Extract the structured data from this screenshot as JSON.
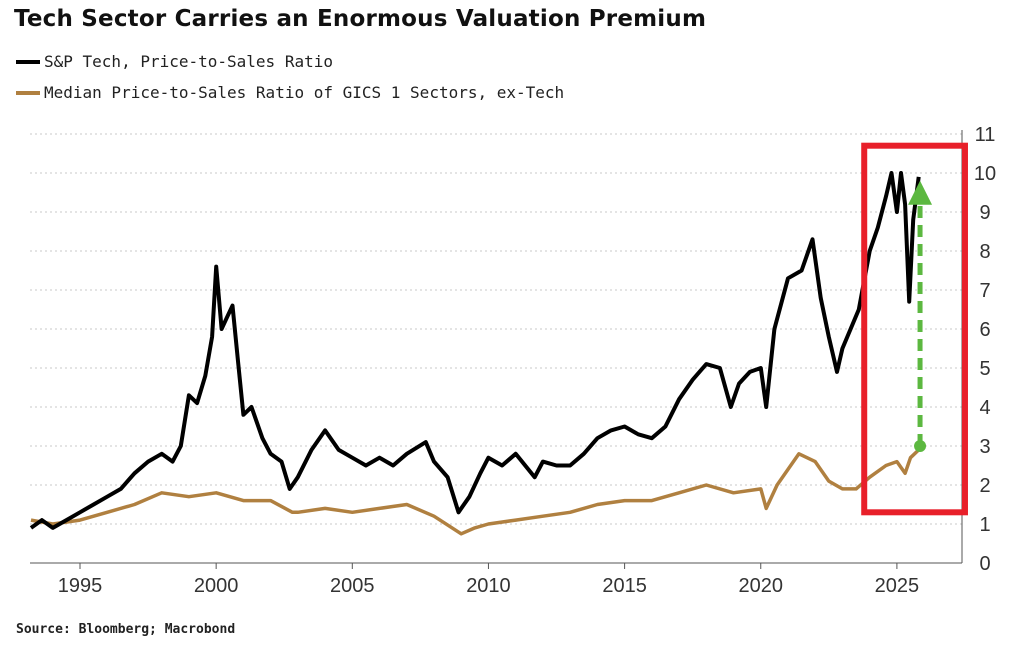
{
  "chart_data": {
    "type": "line",
    "title": "Tech Sector Carries an Enormous Valuation Premium",
    "source": "Source: Bloomberg; Macrobond",
    "xlabel": "",
    "ylabel": "",
    "xlim": [
      1993.2,
      2027.5
    ],
    "ylim": [
      0,
      11
    ],
    "x_ticks": [
      "1995",
      "2000",
      "2005",
      "2010",
      "2015",
      "2020",
      "2025"
    ],
    "y_ticks": [
      "0",
      "1",
      "2",
      "3",
      "4",
      "5",
      "6",
      "7",
      "8",
      "9",
      "10",
      "11"
    ],
    "y_axis_side": "right",
    "grid": "horizontal dotted",
    "legend_placement": "top-left",
    "series": [
      {
        "name": "S&P Tech, Price-to-Sales Ratio",
        "color": "#000000",
        "points": [
          [
            1993.2,
            0.9
          ],
          [
            1993.6,
            1.1
          ],
          [
            1994,
            0.9
          ],
          [
            1994.5,
            1.1
          ],
          [
            1995,
            1.3
          ],
          [
            1995.5,
            1.5
          ],
          [
            1996,
            1.7
          ],
          [
            1996.5,
            1.9
          ],
          [
            1997,
            2.3
          ],
          [
            1997.5,
            2.6
          ],
          [
            1998,
            2.8
          ],
          [
            1998.4,
            2.6
          ],
          [
            1998.7,
            3.0
          ],
          [
            1999,
            4.3
          ],
          [
            1999.3,
            4.1
          ],
          [
            1999.6,
            4.8
          ],
          [
            1999.85,
            5.8
          ],
          [
            2000,
            7.6
          ],
          [
            2000.2,
            6.0
          ],
          [
            2000.4,
            6.3
          ],
          [
            2000.6,
            6.6
          ],
          [
            2000.8,
            5.2
          ],
          [
            2001,
            3.8
          ],
          [
            2001.3,
            4.0
          ],
          [
            2001.7,
            3.2
          ],
          [
            2002,
            2.8
          ],
          [
            2002.4,
            2.6
          ],
          [
            2002.7,
            1.9
          ],
          [
            2003,
            2.2
          ],
          [
            2003.5,
            2.9
          ],
          [
            2004,
            3.4
          ],
          [
            2004.5,
            2.9
          ],
          [
            2005,
            2.7
          ],
          [
            2005.5,
            2.5
          ],
          [
            2006,
            2.7
          ],
          [
            2006.5,
            2.5
          ],
          [
            2007,
            2.8
          ],
          [
            2007.7,
            3.1
          ],
          [
            2008,
            2.6
          ],
          [
            2008.5,
            2.2
          ],
          [
            2008.9,
            1.3
          ],
          [
            2009.3,
            1.7
          ],
          [
            2009.7,
            2.3
          ],
          [
            2010,
            2.7
          ],
          [
            2010.5,
            2.5
          ],
          [
            2011,
            2.8
          ],
          [
            2011.7,
            2.2
          ],
          [
            2012,
            2.6
          ],
          [
            2012.5,
            2.5
          ],
          [
            2013,
            2.5
          ],
          [
            2013.5,
            2.8
          ],
          [
            2014,
            3.2
          ],
          [
            2014.5,
            3.4
          ],
          [
            2015,
            3.5
          ],
          [
            2015.5,
            3.3
          ],
          [
            2016,
            3.2
          ],
          [
            2016.5,
            3.5
          ],
          [
            2017,
            4.2
          ],
          [
            2017.5,
            4.7
          ],
          [
            2018,
            5.1
          ],
          [
            2018.5,
            5.0
          ],
          [
            2018.9,
            4.0
          ],
          [
            2019.2,
            4.6
          ],
          [
            2019.6,
            4.9
          ],
          [
            2020,
            5.0
          ],
          [
            2020.2,
            4.0
          ],
          [
            2020.5,
            6.0
          ],
          [
            2021,
            7.3
          ],
          [
            2021.5,
            7.5
          ],
          [
            2021.9,
            8.3
          ],
          [
            2022.2,
            6.8
          ],
          [
            2022.5,
            5.8
          ],
          [
            2022.8,
            4.9
          ],
          [
            2023,
            5.5
          ],
          [
            2023.3,
            6.0
          ],
          [
            2023.6,
            6.5
          ],
          [
            2024,
            8.0
          ],
          [
            2024.3,
            8.6
          ],
          [
            2024.6,
            9.4
          ],
          [
            2024.8,
            10.0
          ],
          [
            2025,
            9.0
          ],
          [
            2025.15,
            10.0
          ],
          [
            2025.3,
            9.2
          ],
          [
            2025.45,
            6.7
          ],
          [
            2025.6,
            8.8
          ],
          [
            2025.8,
            9.9
          ]
        ]
      },
      {
        "name": "Median Price-to-Sales Ratio of GICS 1 Sectors, ex-Tech",
        "color": "#b08040",
        "points": [
          [
            1993.2,
            1.1
          ],
          [
            1994,
            1.0
          ],
          [
            1995,
            1.1
          ],
          [
            1996,
            1.3
          ],
          [
            1997,
            1.5
          ],
          [
            1998,
            1.8
          ],
          [
            1999,
            1.7
          ],
          [
            2000,
            1.8
          ],
          [
            2001,
            1.6
          ],
          [
            2002,
            1.6
          ],
          [
            2002.8,
            1.3
          ],
          [
            2003,
            1.3
          ],
          [
            2004,
            1.4
          ],
          [
            2005,
            1.3
          ],
          [
            2006,
            1.4
          ],
          [
            2007,
            1.5
          ],
          [
            2008,
            1.2
          ],
          [
            2009,
            0.75
          ],
          [
            2009.5,
            0.9
          ],
          [
            2010,
            1.0
          ],
          [
            2011,
            1.1
          ],
          [
            2012,
            1.2
          ],
          [
            2013,
            1.3
          ],
          [
            2014,
            1.5
          ],
          [
            2015,
            1.6
          ],
          [
            2016,
            1.6
          ],
          [
            2017,
            1.8
          ],
          [
            2018,
            2.0
          ],
          [
            2019,
            1.8
          ],
          [
            2020,
            1.9
          ],
          [
            2020.2,
            1.4
          ],
          [
            2020.6,
            2.0
          ],
          [
            2021,
            2.4
          ],
          [
            2021.4,
            2.8
          ],
          [
            2022,
            2.6
          ],
          [
            2022.5,
            2.1
          ],
          [
            2023,
            1.9
          ],
          [
            2023.5,
            1.9
          ],
          [
            2024,
            2.2
          ],
          [
            2024.6,
            2.5
          ],
          [
            2025,
            2.6
          ],
          [
            2025.3,
            2.3
          ],
          [
            2025.5,
            2.7
          ],
          [
            2025.8,
            2.9
          ]
        ]
      }
    ],
    "annotations": {
      "highlight_box": {
        "x": [
          2023.8,
          2027.5
        ],
        "y": [
          1.3,
          10.7
        ],
        "color": "#e8202a"
      },
      "arrow": {
        "x": 2025.85,
        "from": 3.0,
        "to": 9.8,
        "color": "#5cb840"
      }
    }
  }
}
